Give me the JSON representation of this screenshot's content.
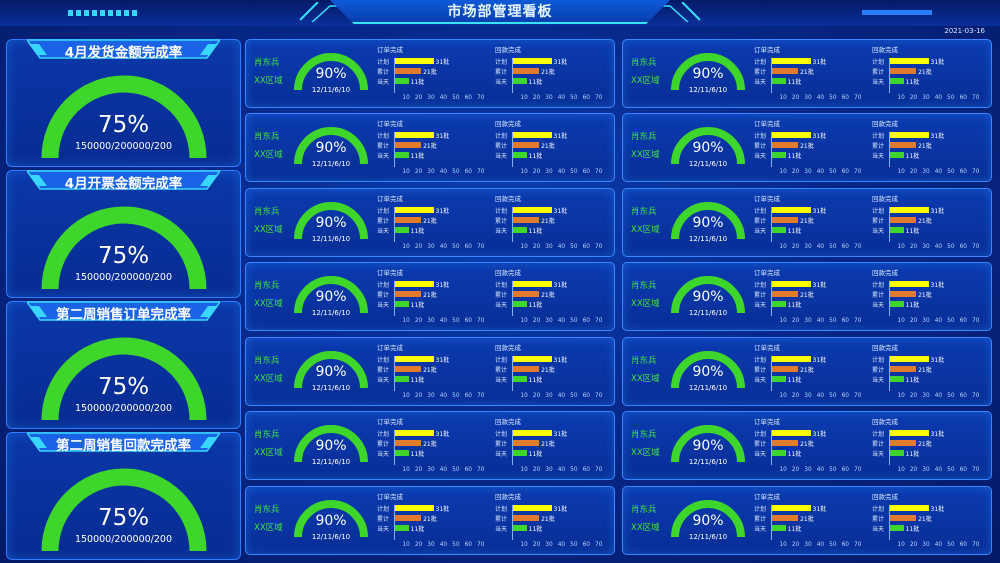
{
  "header": {
    "title": "市场部管理看板",
    "date": "2021-03-16"
  },
  "colors": {
    "gauge": "#3ed62a",
    "plan": "#ffff00",
    "cumulative": "#e07a2c",
    "today": "#3ed62a",
    "accent": "#36e2ff"
  },
  "summary_cards": [
    {
      "title": "4月发货金额完成率",
      "percent": "75%",
      "value": 0.75,
      "detail": "150000/200000/200"
    },
    {
      "title": "4月开票金额完成率",
      "percent": "75%",
      "value": 0.75,
      "detail": "150000/200000/200"
    },
    {
      "title": "第二周销售订单完成率",
      "percent": "75%",
      "value": 0.75,
      "detail": "150000/200000/200"
    },
    {
      "title": "第二周销售回款完成率",
      "percent": "75%",
      "value": 0.75,
      "detail": "150000/200000/200"
    }
  ],
  "panel_template": {
    "name": "肖东兵",
    "region": "XX区域",
    "percent": "90%",
    "value": 0.9,
    "detail": "12/11/6/10",
    "blocks": [
      {
        "title": "订单完成",
        "rows": [
          {
            "label": "计划",
            "value": 31,
            "text": "31批"
          },
          {
            "label": "累计",
            "value": 21,
            "text": "21批"
          },
          {
            "label": "当天",
            "value": 11,
            "text": "11批"
          }
        ]
      },
      {
        "title": "回款完成",
        "rows": [
          {
            "label": "计划",
            "value": 31,
            "text": "31批"
          },
          {
            "label": "累计",
            "value": 21,
            "text": "21批"
          },
          {
            "label": "当天",
            "value": 11,
            "text": "11批"
          }
        ]
      }
    ],
    "axis_ticks": [
      "10",
      "20",
      "30",
      "40",
      "50",
      "60",
      "70"
    ],
    "axis_max": 70
  },
  "panel_count": 14
}
